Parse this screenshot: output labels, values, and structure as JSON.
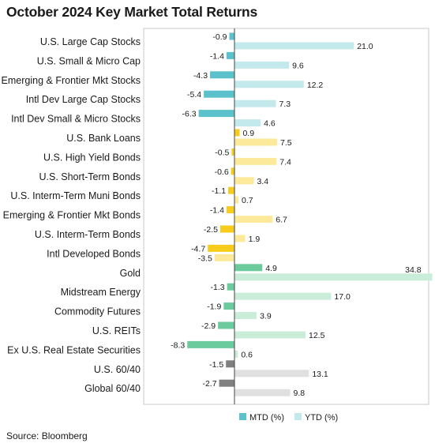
{
  "title": "October 2024 Key Market Total Returns",
  "source": "Source: Bloomberg",
  "colors": {
    "equity_mtd": "#5BC2CB",
    "equity_ytd": "#C4E9EC",
    "fixed_mtd": "#F7CC1D",
    "fixed_ytd": "#FCEA9A",
    "real_mtd": "#6CCB9D",
    "real_ytd": "#C9EDD9",
    "multi_mtd": "#808080",
    "multi_ytd": "#E0E0E0"
  },
  "chart_data": {
    "type": "bar",
    "orientation": "horizontal",
    "title": "October 2024 Key Market Total Returns",
    "categories": [
      "U.S. Large Cap Stocks",
      "U.S. Small & Micro Cap",
      "Emerging & Frontier Mkt Stocks",
      "Intl Dev Large Cap Stocks",
      "Intl Dev Small & Micro Stocks",
      "U.S. Bank Loans",
      "U.S. High Yield Bonds",
      "U.S. Short-Term Bonds",
      "U.S. Interm-Term Muni Bonds",
      "Emerging & Frontier Mkt Bonds",
      "U.S. Interm-Term Bonds",
      "Intl Developed Bonds",
      "Gold",
      "Midstream Energy",
      "Commodity Futures",
      "U.S. REITs",
      "Ex U.S. Real Estate Securities",
      "U.S. 60/40",
      "Global 60/40"
    ],
    "groups": [
      "equity",
      "equity",
      "equity",
      "equity",
      "equity",
      "fixed",
      "fixed",
      "fixed",
      "fixed",
      "fixed",
      "fixed",
      "fixed",
      "real",
      "real",
      "real",
      "real",
      "real",
      "multi",
      "multi"
    ],
    "series": [
      {
        "name": "MTD (%)",
        "values": [
          -0.9,
          -1.4,
          -4.3,
          -5.4,
          -6.3,
          0.9,
          -0.5,
          -0.6,
          -1.1,
          -1.4,
          -2.5,
          -4.7,
          4.9,
          -1.3,
          -1.9,
          -2.9,
          -8.3,
          -1.5,
          -2.7
        ]
      },
      {
        "name": "YTD (%)",
        "values": [
          21.0,
          9.6,
          12.2,
          7.3,
          4.6,
          7.5,
          7.4,
          3.4,
          0.7,
          6.7,
          1.9,
          -3.5,
          34.8,
          17.0,
          3.9,
          12.5,
          0.6,
          13.1,
          9.8
        ]
      }
    ],
    "legend": [
      "MTD (%)",
      "YTD (%)"
    ],
    "legend_position": "bottom",
    "grid": false
  }
}
